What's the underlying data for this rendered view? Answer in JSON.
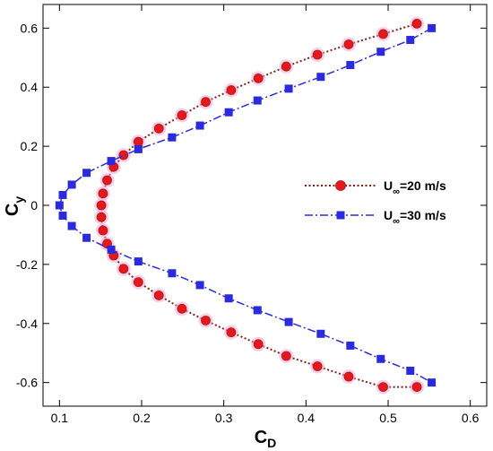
{
  "chart_data": {
    "type": "line",
    "title": "",
    "xlabel": {
      "main": "C",
      "sub": "D"
    },
    "ylabel": {
      "main": "C",
      "sub": "y"
    },
    "xlim": [
      0.08,
      0.62
    ],
    "ylim": [
      -0.68,
      0.68
    ],
    "x_ticks": [
      0.1,
      0.2,
      0.3,
      0.4,
      0.5,
      0.6
    ],
    "x_tick_labels": [
      "0.1",
      "0.2",
      "0.3",
      "0.4",
      "0.5",
      "0.6"
    ],
    "y_ticks": [
      -0.6,
      -0.4,
      -0.2,
      0,
      0.2,
      0.4,
      0.6
    ],
    "y_tick_labels": [
      "-0.6",
      "-0.4",
      "-0.2",
      "0",
      "0.2",
      "0.4",
      "0.6"
    ],
    "grid": false,
    "legend_position": "right",
    "series": [
      {
        "name": {
          "main": "U",
          "sub": "∞",
          "rest": "=20 m/s"
        },
        "color": "#8b1a1a",
        "marker_color": "#e31a1c",
        "marker": "circle",
        "line_style": "dotted",
        "x": [
          0.535,
          0.494,
          0.452,
          0.414,
          0.376,
          0.342,
          0.309,
          0.278,
          0.249,
          0.221,
          0.196,
          0.178,
          0.166,
          0.158,
          0.153,
          0.151,
          0.151,
          0.153,
          0.158,
          0.166,
          0.178,
          0.196,
          0.221,
          0.249,
          0.278,
          0.309,
          0.342,
          0.376,
          0.414,
          0.452,
          0.494,
          0.535
        ],
        "y": [
          0.615,
          0.58,
          0.545,
          0.51,
          0.47,
          0.43,
          0.39,
          0.35,
          0.305,
          0.26,
          0.215,
          0.17,
          0.13,
          0.085,
          0.04,
          0.0,
          -0.04,
          -0.085,
          -0.13,
          -0.17,
          -0.215,
          -0.26,
          -0.305,
          -0.35,
          -0.39,
          -0.43,
          -0.47,
          -0.51,
          -0.545,
          -0.58,
          -0.615,
          -0.615
        ]
      },
      {
        "name": {
          "main": "U",
          "sub": "∞",
          "rest": "=30 m/s"
        },
        "color": "#2b2bdd",
        "marker_color": "#2b2bdd",
        "marker": "square",
        "line_style": "dashdot",
        "x": [
          0.553,
          0.527,
          0.491,
          0.454,
          0.418,
          0.379,
          0.341,
          0.306,
          0.271,
          0.237,
          0.196,
          0.163,
          0.133,
          0.115,
          0.104,
          0.1,
          0.104,
          0.115,
          0.133,
          0.163,
          0.196,
          0.237,
          0.271,
          0.306,
          0.341,
          0.379,
          0.418,
          0.454,
          0.491,
          0.527,
          0.553
        ],
        "y": [
          0.6,
          0.56,
          0.52,
          0.475,
          0.435,
          0.395,
          0.355,
          0.315,
          0.27,
          0.23,
          0.19,
          0.15,
          0.11,
          0.07,
          0.035,
          0.0,
          -0.035,
          -0.07,
          -0.11,
          -0.15,
          -0.19,
          -0.23,
          -0.27,
          -0.315,
          -0.355,
          -0.395,
          -0.435,
          -0.475,
          -0.52,
          -0.56,
          -0.6
        ]
      }
    ]
  }
}
